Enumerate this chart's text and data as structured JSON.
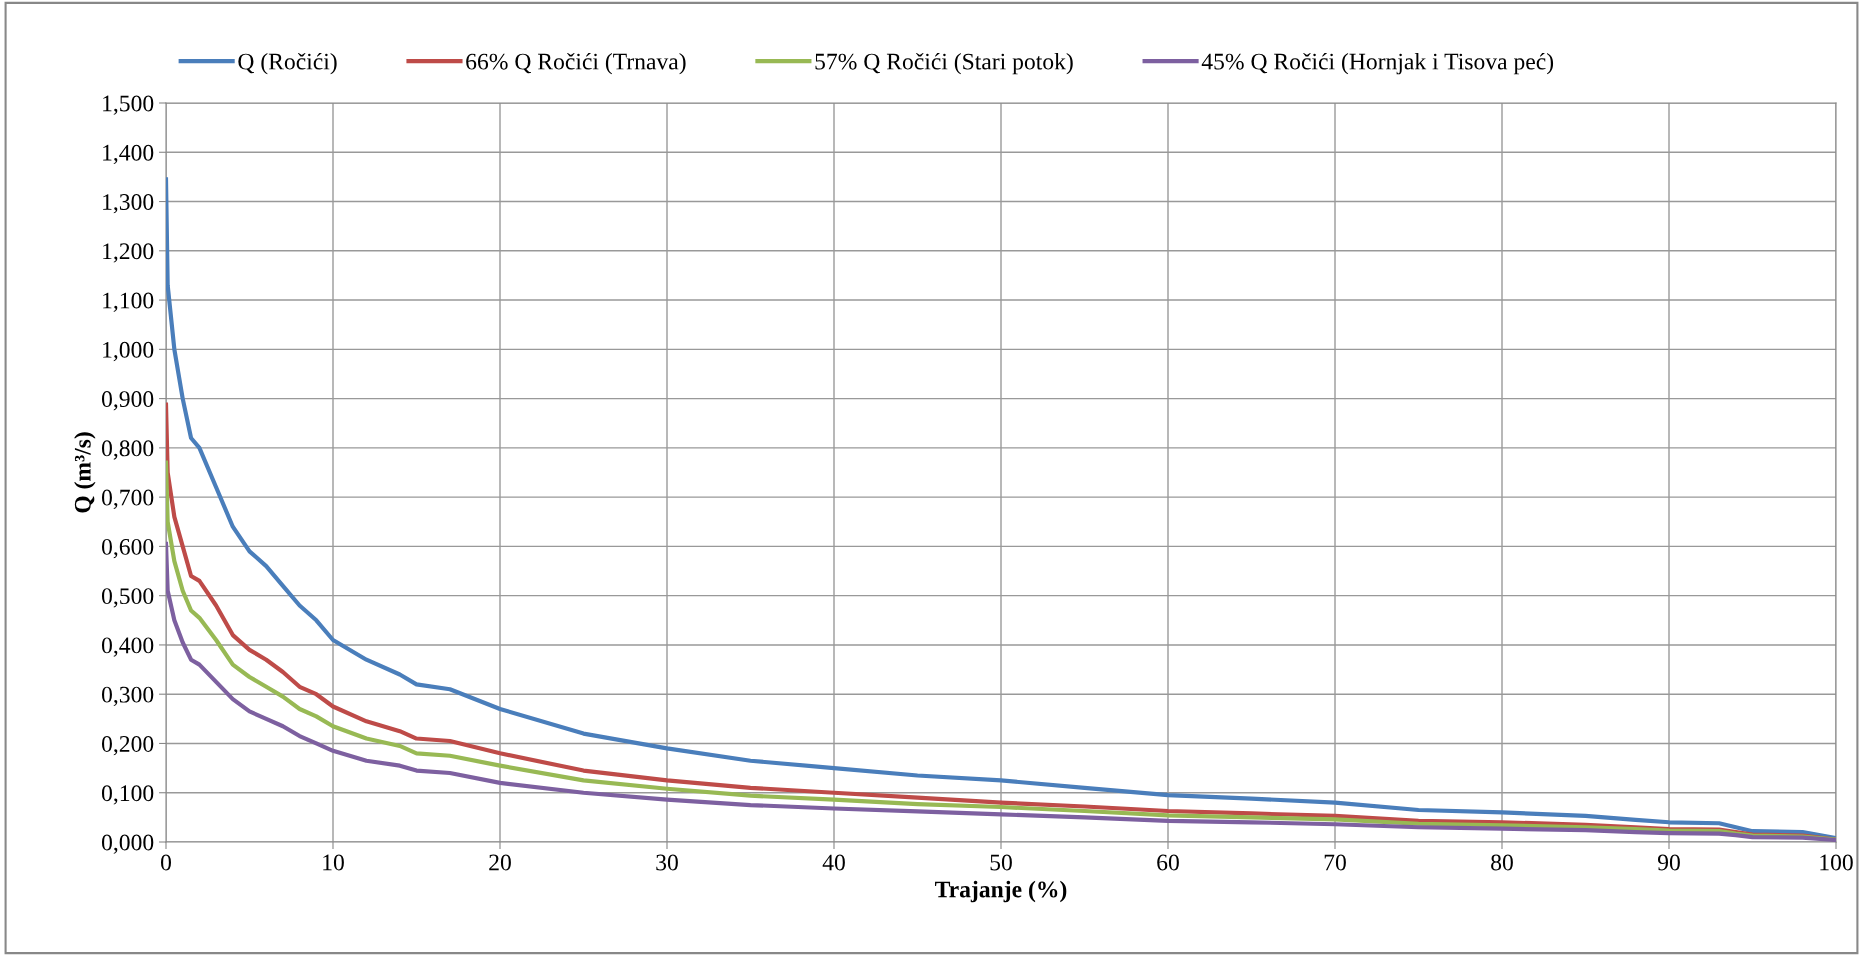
{
  "chart_data": {
    "type": "line",
    "xlabel": "Trajanje (%)",
    "ylabel": "Q (m³/s)",
    "x": [
      0,
      0.1,
      0.5,
      1,
      1.5,
      2,
      3,
      4,
      5,
      6,
      7,
      8,
      9,
      10,
      12,
      14,
      15,
      17,
      20,
      25,
      30,
      35,
      40,
      45,
      50,
      55,
      60,
      65,
      70,
      75,
      80,
      85,
      88,
      90,
      93,
      94,
      95,
      98,
      100
    ],
    "series": [
      {
        "name": "Q (Ročići)",
        "color": "#4a7ebb",
        "values": [
          1.345,
          1.13,
          1.0,
          0.9,
          0.82,
          0.8,
          0.72,
          0.64,
          0.59,
          0.56,
          0.52,
          0.48,
          0.45,
          0.41,
          0.37,
          0.34,
          0.32,
          0.31,
          0.27,
          0.22,
          0.19,
          0.165,
          0.15,
          0.135,
          0.125,
          0.11,
          0.095,
          0.088,
          0.08,
          0.065,
          0.06,
          0.053,
          0.045,
          0.04,
          0.038,
          0.03,
          0.022,
          0.02,
          0.008
        ]
      },
      {
        "name": "66% Q Ročići (Trnava)",
        "color": "#be4b48",
        "values": [
          0.888,
          0.75,
          0.66,
          0.6,
          0.54,
          0.53,
          0.48,
          0.42,
          0.39,
          0.37,
          0.345,
          0.315,
          0.3,
          0.275,
          0.245,
          0.225,
          0.21,
          0.205,
          0.18,
          0.145,
          0.125,
          0.11,
          0.1,
          0.09,
          0.08,
          0.072,
          0.063,
          0.058,
          0.053,
          0.043,
          0.04,
          0.035,
          0.03,
          0.026,
          0.025,
          0.02,
          0.015,
          0.013,
          0.005
        ]
      },
      {
        "name": "57% Q Ročići (Stari potok)",
        "color": "#98b954",
        "values": [
          0.77,
          0.65,
          0.57,
          0.51,
          0.47,
          0.455,
          0.41,
          0.36,
          0.335,
          0.315,
          0.295,
          0.27,
          0.255,
          0.235,
          0.21,
          0.195,
          0.18,
          0.175,
          0.155,
          0.125,
          0.108,
          0.094,
          0.086,
          0.077,
          0.071,
          0.063,
          0.054,
          0.05,
          0.046,
          0.037,
          0.034,
          0.03,
          0.026,
          0.023,
          0.022,
          0.017,
          0.013,
          0.011,
          0.005
        ]
      },
      {
        "name": "45% Q Ročići (Hornjak i Tisova peć)",
        "color": "#7d60a0",
        "values": [
          0.605,
          0.51,
          0.45,
          0.405,
          0.37,
          0.36,
          0.325,
          0.29,
          0.265,
          0.25,
          0.235,
          0.215,
          0.2,
          0.185,
          0.165,
          0.155,
          0.145,
          0.14,
          0.12,
          0.1,
          0.086,
          0.075,
          0.068,
          0.062,
          0.056,
          0.05,
          0.043,
          0.04,
          0.036,
          0.03,
          0.027,
          0.024,
          0.02,
          0.018,
          0.017,
          0.014,
          0.01,
          0.009,
          0.004
        ]
      }
    ],
    "xlim": [
      0,
      100
    ],
    "xticks": [
      0,
      10,
      20,
      30,
      40,
      50,
      60,
      70,
      80,
      90,
      100
    ],
    "ylim": [
      0,
      1.5
    ],
    "yticks": [
      {
        "value": 0,
        "label": "0,000"
      },
      {
        "value": 0.1,
        "label": "0,100"
      },
      {
        "value": 0.2,
        "label": "0,200"
      },
      {
        "value": 0.3,
        "label": "0,300"
      },
      {
        "value": 0.4,
        "label": "0,400"
      },
      {
        "value": 0.5,
        "label": "0,500"
      },
      {
        "value": 0.6,
        "label": "0,600"
      },
      {
        "value": 0.7,
        "label": "0,700"
      },
      {
        "value": 0.8,
        "label": "0,800"
      },
      {
        "value": 0.9,
        "label": "0,900"
      },
      {
        "value": 1.0,
        "label": "1,000"
      },
      {
        "value": 1.1,
        "label": "1,100"
      },
      {
        "value": 1.2,
        "label": "1,200"
      },
      {
        "value": 1.3,
        "label": "1,300"
      },
      {
        "value": 1.4,
        "label": "1,400"
      },
      {
        "value": 1.5,
        "label": "1,500"
      }
    ],
    "grid": true,
    "legend": "top",
    "marker": "none",
    "line_style": "solid"
  }
}
